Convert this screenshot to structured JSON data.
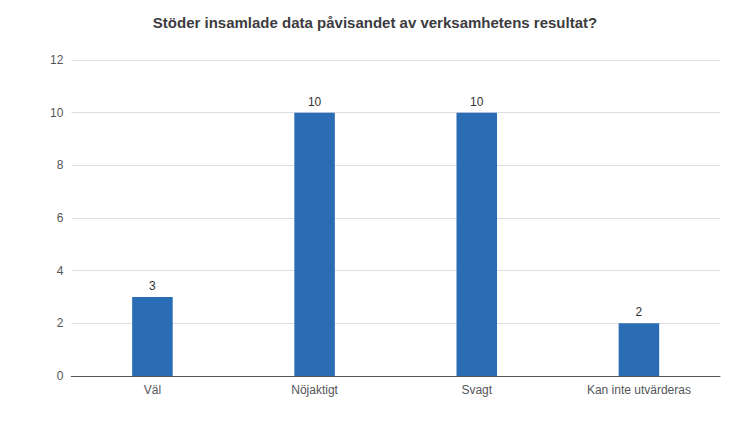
{
  "chart_data": {
    "type": "bar",
    "title": "Stöder insamlade data påvisandet av verksamhetens resultat?",
    "categories": [
      "Väl",
      "Nöjaktigt",
      "Svagt",
      "Kan inte utvärderas"
    ],
    "values": [
      3,
      10,
      10,
      2
    ],
    "color": "#2a6db5",
    "ylim": [
      0,
      12
    ],
    "yticks": [
      0,
      2,
      4,
      6,
      8,
      10,
      12
    ],
    "grid": true,
    "data_labels": true
  }
}
